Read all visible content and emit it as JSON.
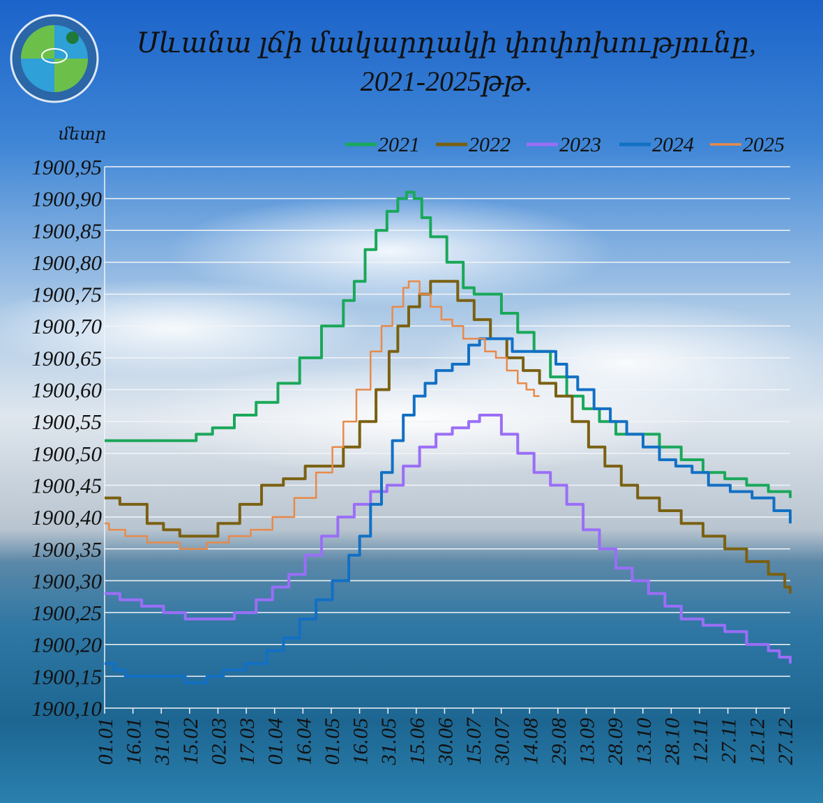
{
  "chart_data": {
    "type": "line",
    "title_line1": "Սևանա լճի մակարդակի փոփոխությունը,",
    "title_line2": "2021-2025թթ.",
    "ylabel": "մետր",
    "ylim": [
      1900.1,
      1900.95
    ],
    "yticks": [
      "1900,95",
      "1900,90",
      "1900,85",
      "1900,80",
      "1900,75",
      "1900,70",
      "1900,65",
      "1900,60",
      "1900,55",
      "1900,50",
      "1900,45",
      "1900,40",
      "1900,35",
      "1900,30",
      "1900,25",
      "1900,20",
      "1900,15",
      "1900,10"
    ],
    "xticks": [
      "01.01",
      "16.01",
      "31.01",
      "15.02",
      "02.03",
      "17.03",
      "01.04",
      "16.04",
      "01.05",
      "16.05",
      "31.05",
      "15.06",
      "30.06",
      "15.07",
      "30.07",
      "14.08",
      "29.08",
      "13.09",
      "28.09",
      "13.10",
      "28.10",
      "12.11",
      "27.11",
      "12.12",
      "27.12"
    ],
    "grid": true,
    "legend_position": "top",
    "series": [
      {
        "name": "2021",
        "color": "#1aa85a",
        "width": 4,
        "points": [
          [
            1,
            1900.52
          ],
          [
            60,
            1900.52
          ],
          [
            85,
            1900.53
          ],
          [
            100,
            1900.54
          ],
          [
            120,
            1900.56
          ],
          [
            140,
            1900.58
          ],
          [
            160,
            1900.61
          ],
          [
            180,
            1900.65
          ],
          [
            200,
            1900.7
          ],
          [
            220,
            1900.74
          ],
          [
            230,
            1900.77
          ],
          [
            240,
            1900.82
          ],
          [
            250,
            1900.85
          ],
          [
            260,
            1900.88
          ],
          [
            270,
            1900.9
          ],
          [
            278,
            1900.91
          ],
          [
            285,
            1900.9
          ],
          [
            292,
            1900.87
          ],
          [
            300,
            1900.84
          ],
          [
            315,
            1900.8
          ],
          [
            330,
            1900.76
          ],
          [
            340,
            1900.75
          ],
          [
            350,
            1900.75
          ],
          [
            365,
            1900.72
          ],
          [
            380,
            1900.69
          ],
          [
            395,
            1900.66
          ],
          [
            410,
            1900.62
          ],
          [
            425,
            1900.59
          ],
          [
            440,
            1900.57
          ],
          [
            455,
            1900.55
          ],
          [
            470,
            1900.53
          ],
          [
            490,
            1900.53
          ],
          [
            510,
            1900.51
          ],
          [
            530,
            1900.49
          ],
          [
            550,
            1900.47
          ],
          [
            570,
            1900.46
          ],
          [
            590,
            1900.45
          ],
          [
            610,
            1900.44
          ],
          [
            625,
            1900.44
          ],
          [
            630,
            1900.43
          ]
        ]
      },
      {
        "name": "2022",
        "color": "#7a6011",
        "width": 4,
        "points": [
          [
            1,
            1900.43
          ],
          [
            15,
            1900.42
          ],
          [
            40,
            1900.39
          ],
          [
            55,
            1900.38
          ],
          [
            70,
            1900.37
          ],
          [
            90,
            1900.37
          ],
          [
            105,
            1900.39
          ],
          [
            125,
            1900.42
          ],
          [
            145,
            1900.45
          ],
          [
            165,
            1900.46
          ],
          [
            185,
            1900.48
          ],
          [
            205,
            1900.48
          ],
          [
            220,
            1900.51
          ],
          [
            235,
            1900.55
          ],
          [
            250,
            1900.6
          ],
          [
            262,
            1900.66
          ],
          [
            270,
            1900.7
          ],
          [
            280,
            1900.73
          ],
          [
            290,
            1900.75
          ],
          [
            300,
            1900.77
          ],
          [
            310,
            1900.77
          ],
          [
            325,
            1900.74
          ],
          [
            340,
            1900.71
          ],
          [
            355,
            1900.68
          ],
          [
            370,
            1900.65
          ],
          [
            385,
            1900.63
          ],
          [
            400,
            1900.61
          ],
          [
            415,
            1900.59
          ],
          [
            430,
            1900.55
          ],
          [
            445,
            1900.51
          ],
          [
            460,
            1900.48
          ],
          [
            475,
            1900.45
          ],
          [
            490,
            1900.43
          ],
          [
            510,
            1900.41
          ],
          [
            530,
            1900.39
          ],
          [
            550,
            1900.37
          ],
          [
            570,
            1900.35
          ],
          [
            590,
            1900.33
          ],
          [
            610,
            1900.31
          ],
          [
            625,
            1900.29
          ],
          [
            630,
            1900.28
          ]
        ]
      },
      {
        "name": "2023",
        "color": "#9a6ef7",
        "width": 4,
        "points": [
          [
            1,
            1900.28
          ],
          [
            15,
            1900.27
          ],
          [
            35,
            1900.26
          ],
          [
            55,
            1900.25
          ],
          [
            75,
            1900.24
          ],
          [
            105,
            1900.24
          ],
          [
            120,
            1900.25
          ],
          [
            140,
            1900.27
          ],
          [
            155,
            1900.29
          ],
          [
            170,
            1900.31
          ],
          [
            185,
            1900.34
          ],
          [
            200,
            1900.37
          ],
          [
            215,
            1900.4
          ],
          [
            230,
            1900.42
          ],
          [
            245,
            1900.44
          ],
          [
            260,
            1900.45
          ],
          [
            275,
            1900.48
          ],
          [
            290,
            1900.51
          ],
          [
            305,
            1900.53
          ],
          [
            320,
            1900.54
          ],
          [
            335,
            1900.55
          ],
          [
            345,
            1900.56
          ],
          [
            355,
            1900.56
          ],
          [
            365,
            1900.53
          ],
          [
            380,
            1900.5
          ],
          [
            395,
            1900.47
          ],
          [
            410,
            1900.45
          ],
          [
            425,
            1900.42
          ],
          [
            440,
            1900.38
          ],
          [
            455,
            1900.35
          ],
          [
            470,
            1900.32
          ],
          [
            485,
            1900.3
          ],
          [
            500,
            1900.28
          ],
          [
            515,
            1900.26
          ],
          [
            530,
            1900.24
          ],
          [
            550,
            1900.23
          ],
          [
            570,
            1900.22
          ],
          [
            590,
            1900.2
          ],
          [
            610,
            1900.19
          ],
          [
            620,
            1900.18
          ],
          [
            630,
            1900.17
          ]
        ]
      },
      {
        "name": "2024",
        "color": "#1270c4",
        "width": 4,
        "points": [
          [
            1,
            1900.17
          ],
          [
            10,
            1900.16
          ],
          [
            20,
            1900.15
          ],
          [
            55,
            1900.15
          ],
          [
            75,
            1900.14
          ],
          [
            95,
            1900.15
          ],
          [
            110,
            1900.16
          ],
          [
            130,
            1900.17
          ],
          [
            150,
            1900.19
          ],
          [
            165,
            1900.21
          ],
          [
            180,
            1900.24
          ],
          [
            195,
            1900.27
          ],
          [
            210,
            1900.3
          ],
          [
            225,
            1900.34
          ],
          [
            235,
            1900.37
          ],
          [
            245,
            1900.42
          ],
          [
            255,
            1900.47
          ],
          [
            265,
            1900.52
          ],
          [
            275,
            1900.56
          ],
          [
            285,
            1900.59
          ],
          [
            295,
            1900.61
          ],
          [
            305,
            1900.63
          ],
          [
            320,
            1900.64
          ],
          [
            335,
            1900.67
          ],
          [
            345,
            1900.68
          ],
          [
            360,
            1900.68
          ],
          [
            375,
            1900.66
          ],
          [
            390,
            1900.66
          ],
          [
            405,
            1900.66
          ],
          [
            415,
            1900.64
          ],
          [
            425,
            1900.62
          ],
          [
            435,
            1900.6
          ],
          [
            450,
            1900.57
          ],
          [
            465,
            1900.55
          ],
          [
            480,
            1900.53
          ],
          [
            495,
            1900.51
          ],
          [
            510,
            1900.49
          ],
          [
            525,
            1900.48
          ],
          [
            540,
            1900.47
          ],
          [
            555,
            1900.45
          ],
          [
            575,
            1900.44
          ],
          [
            595,
            1900.43
          ],
          [
            615,
            1900.41
          ],
          [
            630,
            1900.39
          ]
        ]
      },
      {
        "name": "2025",
        "color": "#e88a4a",
        "width": 2.5,
        "points": [
          [
            1,
            1900.39
          ],
          [
            5,
            1900.38
          ],
          [
            20,
            1900.37
          ],
          [
            40,
            1900.36
          ],
          [
            70,
            1900.35
          ],
          [
            95,
            1900.36
          ],
          [
            115,
            1900.37
          ],
          [
            135,
            1900.38
          ],
          [
            155,
            1900.4
          ],
          [
            175,
            1900.43
          ],
          [
            195,
            1900.47
          ],
          [
            210,
            1900.51
          ],
          [
            220,
            1900.55
          ],
          [
            232,
            1900.6
          ],
          [
            245,
            1900.66
          ],
          [
            255,
            1900.7
          ],
          [
            265,
            1900.73
          ],
          [
            275,
            1900.76
          ],
          [
            280,
            1900.77
          ],
          [
            290,
            1900.75
          ],
          [
            300,
            1900.73
          ],
          [
            310,
            1900.71
          ],
          [
            320,
            1900.7
          ],
          [
            330,
            1900.68
          ],
          [
            340,
            1900.68
          ],
          [
            350,
            1900.66
          ],
          [
            360,
            1900.65
          ],
          [
            370,
            1900.63
          ],
          [
            380,
            1900.61
          ],
          [
            388,
            1900.6
          ],
          [
            395,
            1900.59
          ],
          [
            400,
            1900.59
          ]
        ]
      }
    ]
  }
}
